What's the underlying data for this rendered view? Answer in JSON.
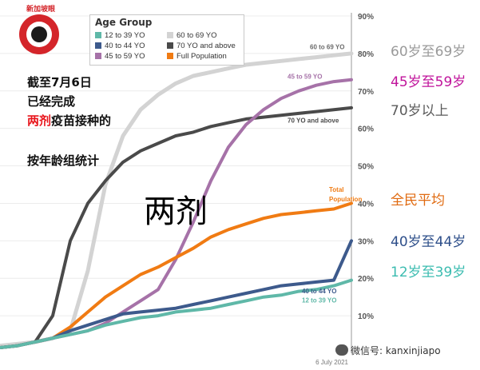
{
  "logo": {
    "text": "新加坡眼"
  },
  "legend": {
    "title": "Age Group",
    "items": [
      {
        "label": "12 to 39 YO",
        "color": "#5fb8a8"
      },
      {
        "label": "60 to 69 YO",
        "color": "#d3d3d3"
      },
      {
        "label": "40 to 44 YO",
        "color": "#3d5a8c"
      },
      {
        "label": "70 YO and above",
        "color": "#4a4a4a"
      },
      {
        "label": "45 to 59 YO",
        "color": "#a672a8"
      },
      {
        "label": "Full Population",
        "color": "#f07b13"
      }
    ]
  },
  "notes": {
    "line1": "截至7月6日",
    "line2": "已经完成",
    "line3_red": "两剂",
    "line3_rest": "疫苗接种的",
    "line4": "按年龄组统计",
    "big": "两剂"
  },
  "right_labels": [
    {
      "text": "60岁至69岁",
      "color": "#9a9a9a"
    },
    {
      "text": "45岁至59岁",
      "color": "#c0139b"
    },
    {
      "text": "70岁以上",
      "color": "#5a5a5a"
    },
    {
      "text": "全民平均",
      "color": "#e06a10"
    },
    {
      "text": "40岁至44岁",
      "color": "#2e4f8a"
    },
    {
      "text": "12岁至39岁",
      "color": "#3bbcb0"
    }
  ],
  "watermark": "微信号: kanxinjiapo",
  "chart_data": {
    "type": "line",
    "x_label_at_end": "6 July 2021",
    "x": [
      0,
      5,
      10,
      15,
      20,
      25,
      30,
      35,
      40,
      45,
      50,
      55,
      60,
      65,
      70,
      75,
      80,
      85,
      90,
      95,
      100
    ],
    "ylim": [
      0,
      90
    ],
    "yticks": [
      "10%",
      "20%",
      "30%",
      "40%",
      "50%",
      "60%",
      "70%",
      "80%",
      "90%"
    ],
    "grid": true,
    "series": [
      {
        "name": "60 to 69 YO",
        "color": "#d3d3d3",
        "values": [
          2,
          2.5,
          3,
          4,
          6,
          22,
          45,
          58,
          65,
          69,
          72,
          74,
          75,
          76,
          77,
          77.5,
          78,
          78.5,
          79,
          79.5,
          80
        ]
      },
      {
        "name": "70 YO and above",
        "color": "#4a4a4a",
        "values": [
          1.5,
          2,
          3,
          10,
          30,
          40,
          46,
          51,
          54,
          56,
          58,
          59,
          60.5,
          61.5,
          62.5,
          63,
          63.5,
          64,
          64.5,
          65,
          65.5
        ]
      },
      {
        "name": "45 to 59 YO",
        "color": "#a672a8",
        "values": [
          1.5,
          2,
          3,
          4,
          5,
          6,
          8,
          11,
          14,
          17,
          25,
          35,
          46,
          55,
          61,
          65,
          68,
          70,
          71.5,
          72.5,
          73
        ]
      },
      {
        "name": "Full Population",
        "color": "#f07b13",
        "values": [
          1.5,
          2,
          3,
          4,
          7,
          11,
          15,
          18,
          21,
          23,
          25.5,
          28,
          31,
          33,
          34.5,
          36,
          37,
          37.5,
          38,
          38.5,
          40
        ]
      },
      {
        "name": "40 to 44 YO",
        "color": "#3d5a8c",
        "values": [
          1.5,
          2,
          3,
          4,
          6,
          7.5,
          9,
          10.5,
          11,
          11.5,
          12,
          13,
          14,
          15,
          16,
          17,
          18,
          18.5,
          19,
          19.5,
          30
        ]
      },
      {
        "name": "12 to 39 YO",
        "color": "#5fb8a8",
        "values": [
          1.5,
          2,
          3,
          4,
          5,
          6,
          7.5,
          8.5,
          9.5,
          10,
          11,
          11.5,
          12,
          13,
          14,
          15,
          15.5,
          16.5,
          17,
          18,
          19.5
        ]
      }
    ],
    "series_labels": [
      {
        "text": "60 to 69 YO",
        "series": 0,
        "color": "#6b6b6b"
      },
      {
        "text": "45 to 59 YO",
        "series": 2,
        "color": "#a672a8"
      },
      {
        "text": "70 YO and above",
        "series": 1,
        "color": "#4a4a4a"
      },
      {
        "text": "Total",
        "series": 3,
        "color": "#f07b13"
      },
      {
        "text": "Population",
        "series": 3,
        "color": "#f07b13"
      },
      {
        "text": "40 to 44 YO",
        "series": 4,
        "color": "#3d5a8c"
      },
      {
        "text": "12 to 39 YO",
        "series": 5,
        "color": "#5fb8a8"
      }
    ]
  }
}
